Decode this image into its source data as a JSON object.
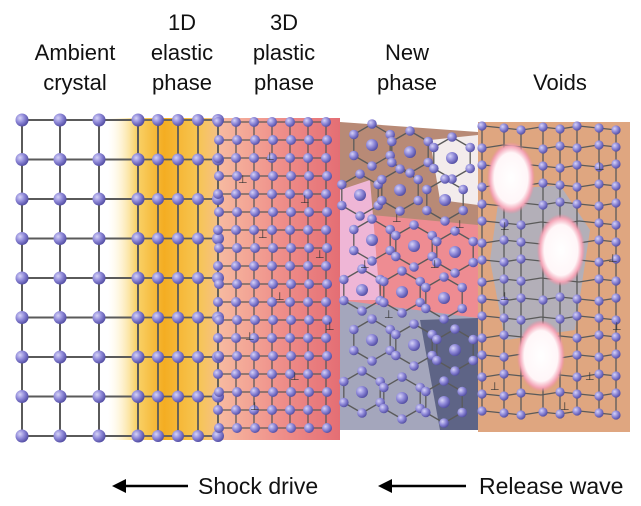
{
  "regions": [
    {
      "id": "ambient",
      "label": "Ambient\ncrystal"
    },
    {
      "id": "elastic",
      "label": "1D\nelastic\nphase"
    },
    {
      "id": "plastic",
      "label": "3D\nplastic\nphase"
    },
    {
      "id": "newphase",
      "label": "New\nphase"
    },
    {
      "id": "voids",
      "label": "Voids"
    }
  ],
  "arrows": {
    "shock": "Shock drive",
    "release": "Release wave"
  },
  "colors": {
    "atom": "#8a84d4",
    "bond": "#5a5a5a",
    "elastic": "#f5b72a",
    "plastic": "#ec7d7d",
    "newphase_brown": "#a77e6c",
    "newphase_pink": "#e88a8a",
    "newphase_gray": "#8e8ea8",
    "void_bg": "#d9a07a"
  }
}
